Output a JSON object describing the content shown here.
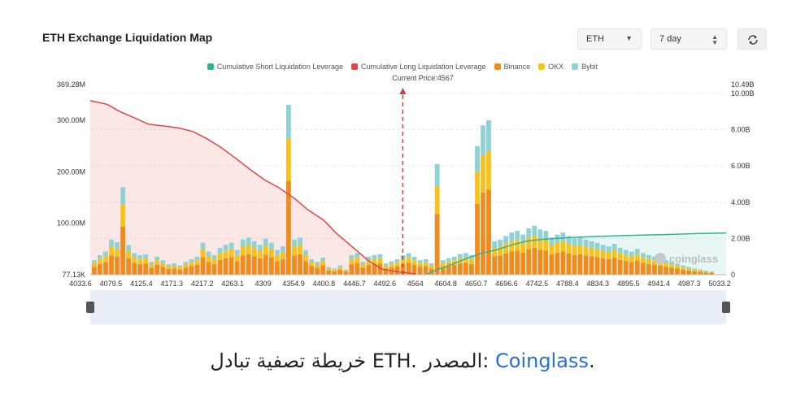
{
  "header": {
    "title": "ETH Exchange Liquidation Map",
    "symbol_select": "ETH",
    "period_select": "7 day",
    "refresh_icon": "refresh-icon"
  },
  "chart_data": {
    "type": "bar",
    "stacked": true,
    "legend_position": "top-center",
    "current_price_label": "Current Price:4567",
    "current_price": 4567,
    "x_ticks": [
      "4033.6",
      "4079.5",
      "4125.4",
      "4171.3",
      "4217.2",
      "4263.1",
      "4309",
      "4354.9",
      "4400.8",
      "4446.7",
      "4492.6",
      "4564",
      "4604.8",
      "4650.7",
      "4696.6",
      "4742.5",
      "4788.4",
      "4834.3",
      "4895.5",
      "4941.4",
      "4987.3",
      "5033.2"
    ],
    "xlim": [
      4033.6,
      5033.2
    ],
    "y_left_ticks": [
      "369.28M",
      "300.00M",
      "200.00M",
      "100.00M",
      "77.13K"
    ],
    "y_left_range": [
      0,
      369.28
    ],
    "y_right_ticks": [
      "10.49B",
      "10.00B",
      "8.00B",
      "6.00B",
      "4.00B",
      "2.00B",
      "0"
    ],
    "y_right_range": [
      0,
      10.49
    ],
    "legend": [
      {
        "name": "Cumulative Short Liquidation Leverage",
        "color": "#2bb39a"
      },
      {
        "name": "Cumulative Long Liquidation Leverage",
        "color": "#e04848"
      },
      {
        "name": "Binance",
        "color": "#f08c1e"
      },
      {
        "name": "OKX",
        "color": "#f7c21b"
      },
      {
        "name": "Bybit",
        "color": "#8ed2d6"
      }
    ],
    "bar_values": [
      28,
      38,
      45,
      68,
      63,
      32,
      58,
      42,
      38,
      40,
      25,
      35,
      28,
      20,
      22,
      18,
      25,
      30,
      35,
      62,
      45,
      38,
      52,
      58,
      62,
      48,
      68,
      72,
      65,
      58,
      70,
      62,
      48,
      55,
      75,
      68,
      72,
      48,
      30,
      25,
      33,
      15,
      12,
      18,
      10,
      38,
      42,
      25,
      35,
      38,
      40,
      22,
      26,
      30,
      38,
      42,
      35,
      28,
      30,
      22,
      25,
      28,
      32,
      35,
      40,
      42,
      38,
      55,
      62,
      70,
      65,
      68,
      75,
      82,
      85,
      78,
      90,
      95,
      88,
      85,
      72,
      78,
      82,
      75,
      70,
      72,
      68,
      65,
      62,
      58,
      55,
      60,
      52,
      48,
      45,
      50,
      42,
      38,
      35,
      32,
      28,
      25,
      22,
      18,
      15,
      12,
      10,
      8,
      6
    ],
    "series": [
      {
        "name": "Binance",
        "color": "#f08c1e"
      },
      {
        "name": "OKX",
        "color": "#f7c21b"
      },
      {
        "name": "Bybit",
        "color": "#8ed2d6"
      }
    ],
    "cumulative_long": {
      "x": [
        4033.6,
        4060,
        4080,
        4100,
        4125.4,
        4150,
        4171.3,
        4195,
        4217.2,
        4240,
        4263.1,
        4285,
        4309,
        4330,
        4354.9,
        4375,
        4400.8,
        4420,
        4446.7,
        4470,
        4492.6,
        4520,
        4545
      ],
      "y": [
        9.6,
        9.4,
        9.0,
        8.7,
        8.3,
        8.2,
        8.1,
        7.9,
        7.5,
        7.0,
        6.4,
        5.8,
        5.2,
        4.8,
        4.2,
        3.6,
        3.0,
        2.3,
        1.5,
        0.8,
        0.3,
        0.15,
        0.05
      ]
    },
    "cumulative_short": {
      "x": [
        4564,
        4580,
        4604.8,
        4625,
        4650.7,
        4675,
        4696.6,
        4720,
        4742.5,
        4788.4,
        4834.3,
        4895.5,
        4941.4,
        4987.3,
        5033.2
      ],
      "y": [
        0.05,
        0.3,
        0.6,
        0.9,
        1.2,
        1.4,
        1.65,
        1.85,
        1.95,
        2.05,
        2.12,
        2.18,
        2.22,
        2.27,
        2.3
      ]
    },
    "watermark": "coinglass"
  },
  "caption": {
    "text_pre": "خريطة تصفية تبادل ETH. المصدر: ",
    "link": "Coinglass",
    "text_post": "."
  }
}
